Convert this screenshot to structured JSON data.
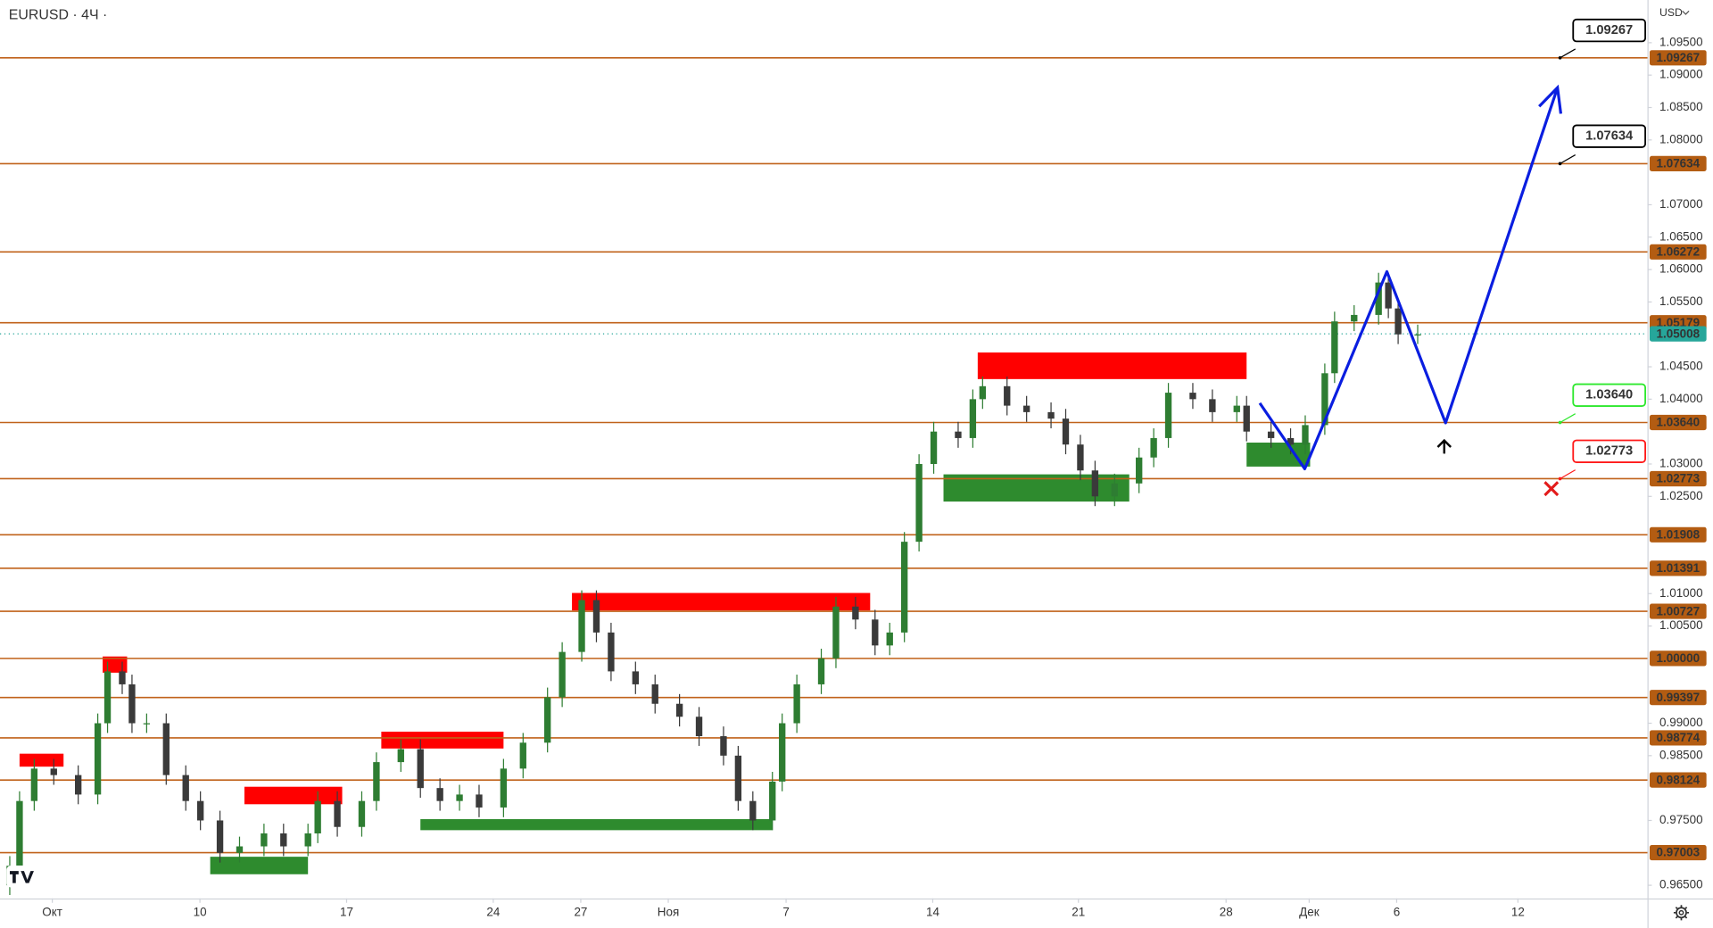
{
  "chart_data": {
    "type": "candlestick",
    "title": "EURUSD · 4Ч ·",
    "currency": "USD",
    "up_color": "#2e7d32",
    "down_color": "#3a3a3a",
    "level_color": "#c0621a",
    "xlim": [
      0,
      337
    ],
    "ylim": [
      0.96297,
      1.10159
    ],
    "xticks": [
      {
        "value": 10.7,
        "label": "Окт"
      },
      {
        "value": 40.9,
        "label": "10"
      },
      {
        "value": 70.9,
        "label": "17"
      },
      {
        "value": 100.9,
        "label": "24"
      },
      {
        "value": 118.8,
        "label": "27"
      },
      {
        "value": 136.7,
        "label": "Ноя"
      },
      {
        "value": 160.8,
        "label": "7"
      },
      {
        "value": 190.8,
        "label": "14"
      },
      {
        "value": 220.6,
        "label": "21"
      },
      {
        "value": 250.8,
        "label": "28"
      },
      {
        "value": 267.8,
        "label": "Дек"
      },
      {
        "value": 285.7,
        "label": "6"
      },
      {
        "value": 310.5,
        "label": "12"
      }
    ],
    "yticks": [
      {
        "value": 1.095,
        "label": "1.09500"
      },
      {
        "value": 1.09,
        "label": "1.09000"
      },
      {
        "value": 1.085,
        "label": "1.08500"
      },
      {
        "value": 1.08,
        "label": "1.08000"
      },
      {
        "value": 1.07,
        "label": "1.07000"
      },
      {
        "value": 1.065,
        "label": "1.06500"
      },
      {
        "value": 1.06,
        "label": "1.06000"
      },
      {
        "value": 1.055,
        "label": "1.05500"
      },
      {
        "value": 1.045,
        "label": "1.04500"
      },
      {
        "value": 1.04,
        "label": "1.04000"
      },
      {
        "value": 1.03,
        "label": "1.03000"
      },
      {
        "value": 1.025,
        "label": "1.02500"
      },
      {
        "value": 1.01,
        "label": "1.01000"
      },
      {
        "value": 1.005,
        "label": "1.00500"
      },
      {
        "value": 0.99,
        "label": "0.99000"
      },
      {
        "value": 0.985,
        "label": "0.98500"
      },
      {
        "value": 0.975,
        "label": "0.97500"
      },
      {
        "value": 0.965,
        "label": "0.96500"
      }
    ],
    "levels": [
      {
        "value": 1.09267,
        "label": "1.09267"
      },
      {
        "value": 1.07634,
        "label": "1.07634"
      },
      {
        "value": 1.06272,
        "label": "1.06272"
      },
      {
        "value": 1.05179,
        "label": "1.05179"
      },
      {
        "value": 1.0364,
        "label": "1.03640"
      },
      {
        "value": 1.02773,
        "label": "1.02773"
      },
      {
        "value": 1.01908,
        "label": "1.01908"
      },
      {
        "value": 1.01391,
        "label": "1.01391"
      },
      {
        "value": 1.00727,
        "label": "1.00727"
      },
      {
        "value": 1.0,
        "label": "1.00000"
      },
      {
        "value": 0.99397,
        "label": "0.99397"
      },
      {
        "value": 0.98774,
        "label": "0.98774"
      },
      {
        "value": 0.98124,
        "label": "0.98124"
      },
      {
        "value": 0.97003,
        "label": "0.97003"
      }
    ],
    "last_price": {
      "value": 1.05008,
      "label": "1.05008",
      "color": "#26a69a"
    },
    "callouts": [
      {
        "value": 1.09267,
        "label": "1.09267",
        "color": "#000000"
      },
      {
        "value": 1.07634,
        "label": "1.07634",
        "color": "#000000"
      },
      {
        "value": 1.0364,
        "label": "1.03640",
        "color": "#2ee82e"
      },
      {
        "value": 1.02773,
        "label": "1.02773",
        "color": "#ff1a1a"
      }
    ],
    "zones": [
      {
        "x": [
          4,
          13
        ],
        "y": [
          0.9833,
          0.9853
        ],
        "color": "#ff0000"
      },
      {
        "x": [
          21,
          26
        ],
        "y": [
          0.9978,
          1.0003
        ],
        "color": "#ff0000"
      },
      {
        "x": [
          50,
          70
        ],
        "y": [
          0.9775,
          0.9802
        ],
        "color": "#ff0000"
      },
      {
        "x": [
          78,
          103
        ],
        "y": [
          0.9861,
          0.9887
        ],
        "color": "#ff0000"
      },
      {
        "x": [
          117,
          178
        ],
        "y": [
          1.0074,
          1.0101
        ],
        "color": "#ff0000"
      },
      {
        "x": [
          200,
          255
        ],
        "y": [
          1.0431,
          1.0472
        ],
        "color": "#ff0000"
      },
      {
        "x": [
          43,
          63
        ],
        "y": [
          0.9667,
          0.9694
        ],
        "color": "#2e8b2e"
      },
      {
        "x": [
          86,
          158
        ],
        "y": [
          0.9735,
          0.9752
        ],
        "color": "#2e8b2e"
      },
      {
        "x": [
          193,
          231
        ],
        "y": [
          1.0242,
          1.0284
        ],
        "color": "#2e8b2e"
      },
      {
        "x": [
          255,
          268
        ],
        "y": [
          1.0296,
          1.0333
        ],
        "color": "#2e8b2e"
      }
    ],
    "projection": {
      "color": "#0a1ee0",
      "x": [
        257.7,
        266.9,
        283.7,
        295.7,
        318.6
      ],
      "y": [
        1.03939,
        1.02925,
        1.05968,
        1.03634,
        1.08807
      ]
    },
    "x": [
      2,
      4,
      7,
      11,
      16,
      20,
      22,
      25,
      27,
      30,
      34,
      38,
      41,
      45,
      49,
      54,
      58,
      63,
      65,
      69,
      74,
      77,
      82,
      86,
      90,
      94,
      98,
      103,
      107,
      112,
      115,
      119,
      122,
      125,
      130,
      134,
      139,
      143,
      148,
      151,
      154,
      158,
      160,
      163,
      168,
      171,
      175,
      179,
      182,
      185,
      188,
      191,
      196,
      199,
      201,
      206,
      210,
      215,
      218,
      221,
      224,
      228,
      233,
      236,
      239,
      244,
      248,
      253,
      255,
      260,
      264,
      267,
      271,
      273,
      277,
      282,
      284,
      286,
      290
    ],
    "ohlc": [
      [
        0.965,
        0.9695,
        0.9635,
        0.968
      ],
      [
        0.968,
        0.9795,
        0.9665,
        0.978
      ],
      [
        0.978,
        0.9845,
        0.9765,
        0.983
      ],
      [
        0.983,
        0.9845,
        0.9805,
        0.982
      ],
      [
        0.982,
        0.9835,
        0.9775,
        0.979
      ],
      [
        0.979,
        0.9915,
        0.9775,
        0.99
      ],
      [
        0.99,
        0.9995,
        0.9885,
        0.998
      ],
      [
        0.998,
        0.9995,
        0.9945,
        0.996
      ],
      [
        0.996,
        0.9975,
        0.9885,
        0.99
      ],
      [
        0.99,
        0.9915,
        0.9885,
        0.99
      ],
      [
        0.99,
        0.9915,
        0.9805,
        0.982
      ],
      [
        0.982,
        0.9835,
        0.9765,
        0.978
      ],
      [
        0.978,
        0.9795,
        0.9735,
        0.975
      ],
      [
        0.975,
        0.9765,
        0.9685,
        0.97
      ],
      [
        0.97,
        0.9725,
        0.9685,
        0.971
      ],
      [
        0.971,
        0.9745,
        0.9695,
        0.973
      ],
      [
        0.973,
        0.9745,
        0.9695,
        0.971
      ],
      [
        0.971,
        0.9745,
        0.9695,
        0.973
      ],
      [
        0.973,
        0.9795,
        0.9715,
        0.978
      ],
      [
        0.978,
        0.9795,
        0.9725,
        0.974
      ],
      [
        0.974,
        0.9795,
        0.9725,
        0.978
      ],
      [
        0.978,
        0.9855,
        0.9765,
        0.984
      ],
      [
        0.984,
        0.9875,
        0.9825,
        0.986
      ],
      [
        0.986,
        0.9875,
        0.9785,
        0.98
      ],
      [
        0.98,
        0.9815,
        0.9765,
        0.978
      ],
      [
        0.978,
        0.9805,
        0.9765,
        0.979
      ],
      [
        0.979,
        0.9805,
        0.9755,
        0.977
      ],
      [
        0.977,
        0.9845,
        0.9755,
        0.983
      ],
      [
        0.983,
        0.9885,
        0.9815,
        0.987
      ],
      [
        0.987,
        0.9955,
        0.9855,
        0.994
      ],
      [
        0.994,
        1.0025,
        0.9925,
        1.001
      ],
      [
        1.001,
        1.0105,
        0.9995,
        1.009
      ],
      [
        1.009,
        1.0105,
        1.0025,
        1.004
      ],
      [
        1.004,
        1.0055,
        0.9965,
        0.998
      ],
      [
        0.998,
        0.9995,
        0.9945,
        0.996
      ],
      [
        0.996,
        0.9975,
        0.9915,
        0.993
      ],
      [
        0.993,
        0.9945,
        0.9895,
        0.991
      ],
      [
        0.991,
        0.9925,
        0.9865,
        0.988
      ],
      [
        0.988,
        0.9895,
        0.9835,
        0.985
      ],
      [
        0.985,
        0.9865,
        0.9765,
        0.978
      ],
      [
        0.978,
        0.9795,
        0.9735,
        0.975
      ],
      [
        0.975,
        0.9825,
        0.9735,
        0.981
      ],
      [
        0.981,
        0.9915,
        0.9795,
        0.99
      ],
      [
        0.99,
        0.9975,
        0.9885,
        0.996
      ],
      [
        0.996,
        1.0015,
        0.9945,
        1.0
      ],
      [
        1.0,
        1.0095,
        0.9985,
        1.008
      ],
      [
        1.008,
        1.0095,
        1.0045,
        1.006
      ],
      [
        1.006,
        1.0075,
        1.0005,
        1.002
      ],
      [
        1.002,
        1.0055,
        1.0005,
        1.004
      ],
      [
        1.004,
        1.0195,
        1.0025,
        1.018
      ],
      [
        1.018,
        1.0315,
        1.0165,
        1.03
      ],
      [
        1.03,
        1.0365,
        1.0285,
        1.035
      ],
      [
        1.035,
        1.0365,
        1.0325,
        1.034
      ],
      [
        1.034,
        1.0415,
        1.0325,
        1.04
      ],
      [
        1.04,
        1.0435,
        1.0385,
        1.042
      ],
      [
        1.042,
        1.0435,
        1.0375,
        1.039
      ],
      [
        1.039,
        1.0405,
        1.0365,
        1.038
      ],
      [
        1.038,
        1.0395,
        1.0355,
        1.037
      ],
      [
        1.037,
        1.0385,
        1.0315,
        1.033
      ],
      [
        1.033,
        1.0345,
        1.0275,
        1.029
      ],
      [
        1.029,
        1.0305,
        1.0235,
        1.025
      ],
      [
        1.025,
        1.0285,
        1.0235,
        1.027
      ],
      [
        1.027,
        1.0325,
        1.0255,
        1.031
      ],
      [
        1.031,
        1.0355,
        1.0295,
        1.034
      ],
      [
        1.034,
        1.0425,
        1.0325,
        1.041
      ],
      [
        1.041,
        1.0425,
        1.0385,
        1.04
      ],
      [
        1.04,
        1.0415,
        1.0365,
        1.038
      ],
      [
        1.038,
        1.0405,
        1.0365,
        1.039
      ],
      [
        1.039,
        1.0405,
        1.0335,
        1.035
      ],
      [
        1.035,
        1.0365,
        1.0325,
        1.034
      ],
      [
        1.034,
        1.0355,
        1.0315,
        1.033
      ],
      [
        1.033,
        1.0375,
        1.0315,
        1.036
      ],
      [
        1.036,
        1.0455,
        1.0345,
        1.044
      ],
      [
        1.044,
        1.0535,
        1.0425,
        1.052
      ],
      [
        1.052,
        1.0545,
        1.0505,
        1.053
      ],
      [
        1.053,
        1.0595,
        1.0515,
        1.058
      ],
      [
        1.058,
        1.0595,
        1.0525,
        1.054
      ],
      [
        1.054,
        1.0555,
        1.0485,
        1.05
      ],
      [
        1.05,
        1.0515,
        1.0485,
        1.05
      ]
    ]
  }
}
